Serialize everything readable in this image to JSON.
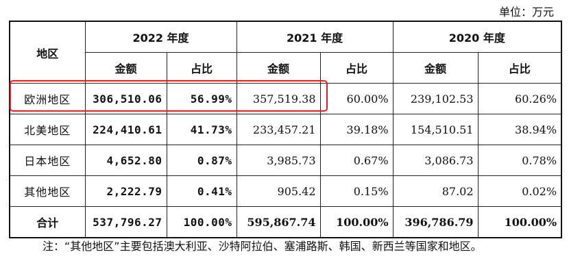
{
  "unit_label": "单位：万元",
  "header": {
    "region": "地区",
    "years": [
      "2022 年度",
      "2021 年度",
      "2020 年度"
    ],
    "amount": "金额",
    "share": "占比"
  },
  "rows": [
    {
      "region": "欧洲地区",
      "y2022_amount": "306,510.06",
      "y2022_share": "56.99%",
      "y2021_amount": "357,519.38",
      "y2021_share": "60.00%",
      "y2020_amount": "239,102.53",
      "y2020_share": "60.26%"
    },
    {
      "region": "北美地区",
      "y2022_amount": "224,410.61",
      "y2022_share": "41.73%",
      "y2021_amount": "233,457.21",
      "y2021_share": "39.18%",
      "y2020_amount": "154,510.51",
      "y2020_share": "38.94%"
    },
    {
      "region": "日本地区",
      "y2022_amount": "4,652.80",
      "y2022_share": "0.87%",
      "y2021_amount": "3,985.73",
      "y2021_share": "0.67%",
      "y2020_amount": "3,086.73",
      "y2020_share": "0.78%"
    },
    {
      "region": "其他地区",
      "y2022_amount": "2,222.79",
      "y2022_share": "0.41%",
      "y2021_amount": "905.42",
      "y2021_share": "0.15%",
      "y2020_amount": "87.02",
      "y2020_share": "0.02%"
    },
    {
      "region": "合计",
      "y2022_amount": "537,796.27",
      "y2022_share": "100.00%",
      "y2021_amount": "595,867.74",
      "y2021_share": "100.00%",
      "y2020_amount": "396,786.79",
      "y2020_share": "100.00%"
    }
  ],
  "highlight_color": "#e02020",
  "note": "注：“其他地区”主要包括澳大利亚、沙特阿拉伯、塞浦路斯、韩国、新西兰等国家和地区。"
}
